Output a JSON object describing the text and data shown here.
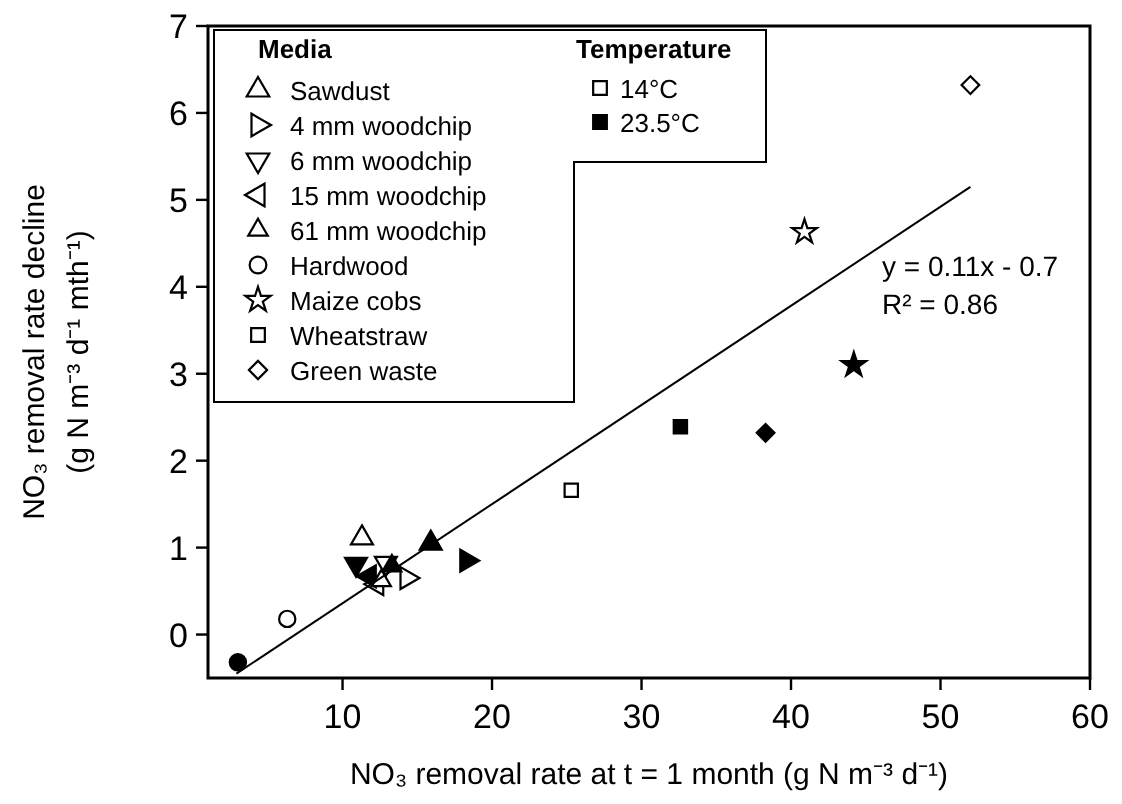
{
  "chart_data": {
    "type": "scatter",
    "xlabel": "NO₃ removal rate at t = 1 month (g N m⁻³ d⁻¹)",
    "ylabel": "NO₃ removal rate decline\n(g N m⁻³ d⁻¹ mth⁻¹)",
    "xlim": [
      1,
      60
    ],
    "xticks": [
      10,
      20,
      30,
      40,
      50,
      60
    ],
    "ylim": [
      -0.5,
      7
    ],
    "yticks": [
      0,
      1,
      2,
      3,
      4,
      5,
      6,
      7
    ],
    "legend": "top left",
    "legend_title": [
      "Media",
      "Temperature"
    ],
    "annotations": [
      "y = 0.11x - 0.7",
      "R² = 0.86"
    ],
    "series": [
      {
        "name": "Sawdust",
        "marker": "triangle",
        "color": "#000000",
        "x": [
          11.3,
          15.9
        ],
        "values": [
          1.11,
          1.05
        ],
        "colors": [
          "#ffffff",
          "#000000"
        ]
      },
      {
        "name": "4 mm woodchip",
        "marker": "triangle-right",
        "color": "#000000",
        "x": [
          14.3,
          18.3
        ],
        "values": [
          0.65,
          0.85
        ],
        "colors": [
          "#ffffff",
          "#000000"
        ]
      },
      {
        "name": "6 mm woodchip",
        "marker": "triangle-down",
        "color": "#000000",
        "x": [
          12.9,
          10.9
        ],
        "values": [
          0.82,
          0.81
        ],
        "colors": [
          "#ffffff",
          "#000000"
        ]
      },
      {
        "name": "15 mm woodchip",
        "marker": "triangle-left",
        "color": "#000000",
        "x": [
          12.3,
          11.8
        ],
        "values": [
          0.58,
          0.67
        ],
        "colors": [
          "#ffffff",
          "#000000"
        ]
      },
      {
        "name": "61 mm woodchip",
        "marker": "triangle-small",
        "color": "#000000",
        "x": [
          12.6,
          13.3
        ],
        "values": [
          0.62,
          0.79
        ],
        "colors": [
          "#ffffff",
          "#000000"
        ]
      },
      {
        "name": "Hardwood",
        "marker": "circle",
        "color": "#000000",
        "x": [
          6.3,
          3.0
        ],
        "values": [
          0.18,
          -0.32
        ],
        "colors": [
          "#ffffff",
          "#000000"
        ]
      },
      {
        "name": "Maize cobs",
        "marker": "star",
        "color": "#000000",
        "x": [
          40.9,
          44.2
        ],
        "values": [
          4.63,
          3.1
        ],
        "colors": [
          "#ffffff",
          "#000000"
        ]
      },
      {
        "name": "Wheatstraw",
        "marker": "square",
        "color": "#000000",
        "x": [
          25.3,
          32.6
        ],
        "values": [
          1.66,
          2.39
        ],
        "colors": [
          "#ffffff",
          "#000000"
        ]
      },
      {
        "name": "Green waste",
        "marker": "diamond",
        "color": "#000000",
        "x": [
          52.0,
          38.3
        ],
        "values": [
          6.32,
          2.32
        ],
        "colors": [
          "#ffffff",
          "#000000"
        ]
      },
      {
        "type": "line",
        "color": "#000000",
        "x": [
          2.9,
          52.0
        ],
        "values": [
          -0.45,
          5.15
        ]
      },
      {
        "name": "14°C",
        "marker": "square",
        "color": "#ffffff"
      },
      {
        "name": "23.5°C",
        "marker": "square",
        "color": "#000000"
      }
    ]
  }
}
